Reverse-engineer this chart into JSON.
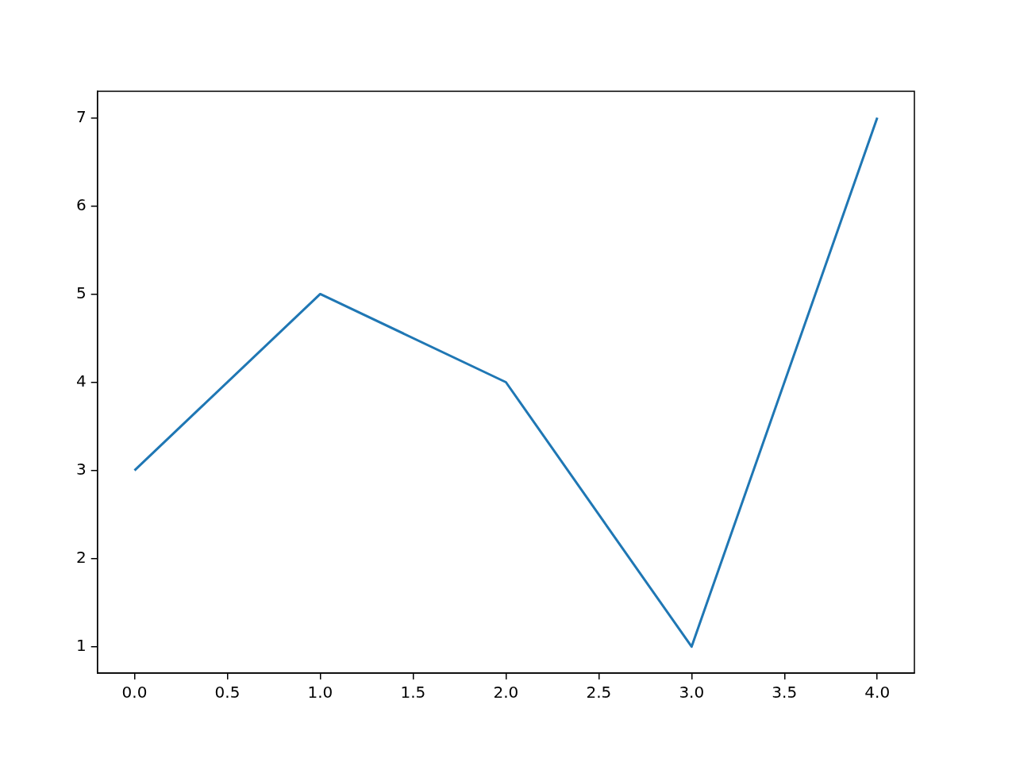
{
  "chart_data": {
    "type": "line",
    "x": [
      0,
      1,
      2,
      3,
      4
    ],
    "values": [
      3,
      5,
      4,
      1,
      7
    ],
    "color": "#1f77b4",
    "xlim": [
      -0.2,
      4.2
    ],
    "ylim": [
      0.7,
      7.3
    ],
    "xticks": [
      {
        "value": 0,
        "label": "0.0"
      },
      {
        "value": 0.5,
        "label": "0.5"
      },
      {
        "value": 1,
        "label": "1.0"
      },
      {
        "value": 1.5,
        "label": "1.5"
      },
      {
        "value": 2,
        "label": "2.0"
      },
      {
        "value": 2.5,
        "label": "2.5"
      },
      {
        "value": 3,
        "label": "3.0"
      },
      {
        "value": 3.5,
        "label": "3.5"
      },
      {
        "value": 4,
        "label": "4.0"
      }
    ],
    "yticks": [
      1,
      2,
      3,
      4,
      5,
      6,
      7
    ]
  }
}
